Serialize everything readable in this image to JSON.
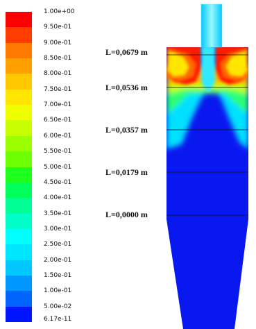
{
  "colorbar": {
    "labels": [
      "1.00e+00",
      "9.50e-01",
      "9.00e-01",
      "8.50e-01",
      "8.00e-01",
      "7.50e-01",
      "7.00e-01",
      "6.50e-01",
      "6.00e-01",
      "5.50e-01",
      "5.00e-01",
      "4.50e-01",
      "4.00e-01",
      "3.50e-01",
      "3.00e-01",
      "2.50e-01",
      "2.00e-01",
      "1.50e-01",
      "1.00e-01",
      "5.00e-02",
      "6.17e-11"
    ],
    "colors": [
      "#ff0000",
      "#ff3c00",
      "#ff7800",
      "#ffa000",
      "#ffc800",
      "#ffe600",
      "#f0ff00",
      "#c8ff00",
      "#9bff00",
      "#6eff00",
      "#1eff1e",
      "#00ff5a",
      "#00ff96",
      "#00ffc8",
      "#00ffff",
      "#00e6ff",
      "#00c8ff",
      "#0096ff",
      "#0064ff",
      "#0014ff"
    ]
  },
  "levels": [
    {
      "label": "L=0,0679 m"
    },
    {
      "label": "L=0,0536 m"
    },
    {
      "label": "L=0,0357 m"
    },
    {
      "label": "L=0,0179 m"
    },
    {
      "label": "L=0,0000 m"
    }
  ]
}
